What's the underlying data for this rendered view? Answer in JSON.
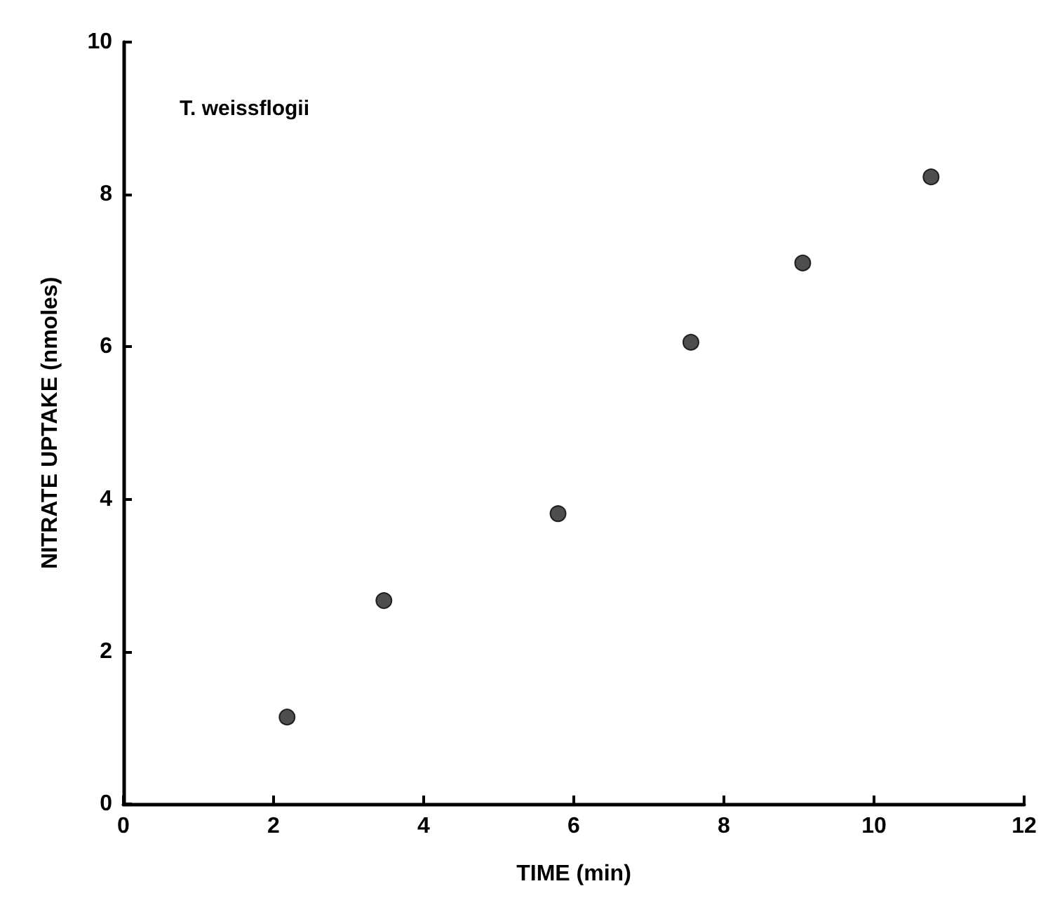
{
  "chart_data": {
    "type": "scatter",
    "xlabel": "TIME (min)",
    "ylabel": "NITRATE UPTAKE (nmoles)",
    "annotations": [
      "T. weissflogii"
    ],
    "x": [
      2.18,
      3.47,
      5.79,
      7.56,
      9.05,
      10.76
    ],
    "values": [
      1.14,
      2.67,
      3.81,
      6.06,
      7.1,
      8.23
    ],
    "color": "#222222",
    "marker": "circle",
    "xlim": [
      0,
      12
    ],
    "xticks": [
      0,
      2,
      4,
      6,
      8,
      10,
      12
    ],
    "ylim": [
      0,
      10
    ],
    "yticks": [
      0,
      2,
      4,
      6,
      8,
      10
    ],
    "grid": false
  }
}
